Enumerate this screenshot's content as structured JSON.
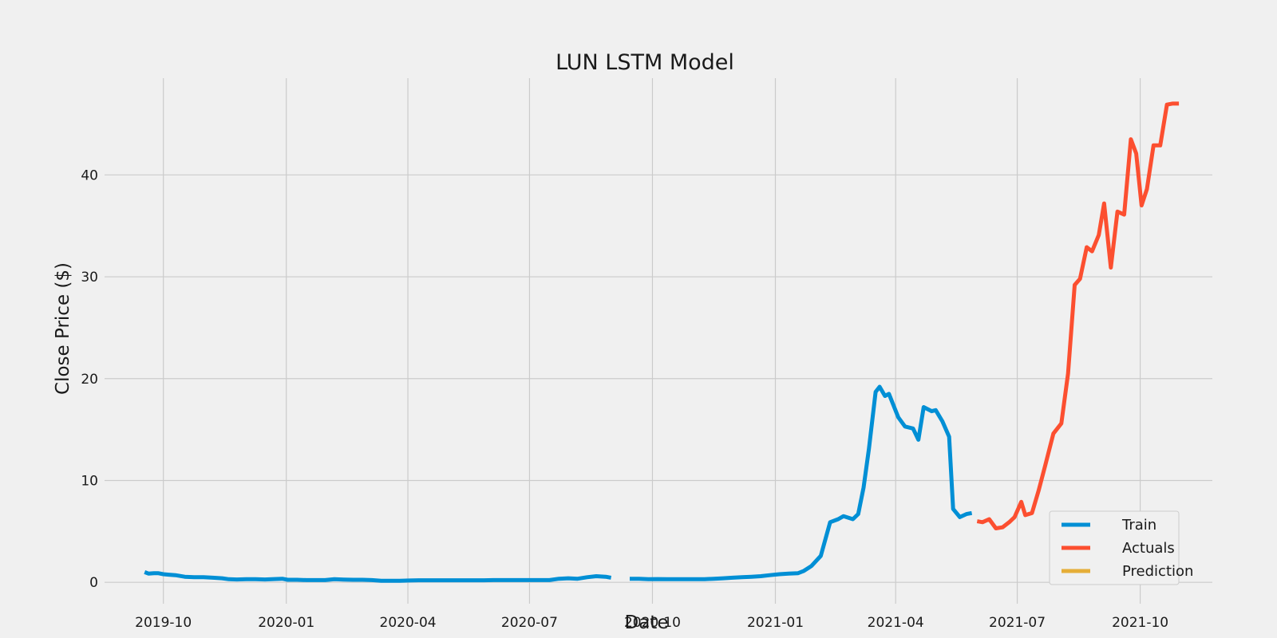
{
  "chart_data": {
    "type": "line",
    "title": "LUN LSTM Model",
    "xlabel": "Date",
    "ylabel": "Close Price ($)",
    "xlim": [
      "2019-08-18",
      "2021-11-24"
    ],
    "ylim": [
      -2.1,
      49.5
    ],
    "x_ticks": [
      "2019-10",
      "2020-01",
      "2020-04",
      "2020-07",
      "2020-10",
      "2021-01",
      "2021-04",
      "2021-07",
      "2021-10"
    ],
    "x_tick_dates": [
      "2019-10-01",
      "2020-01-01",
      "2020-04-01",
      "2020-07-01",
      "2020-10-01",
      "2021-01-01",
      "2021-04-01",
      "2021-07-01",
      "2021-10-01"
    ],
    "y_ticks": [
      "0",
      "10",
      "20",
      "30",
      "40"
    ],
    "y_tick_values": [
      0,
      10,
      20,
      30,
      40
    ],
    "grid": true,
    "legend_position": "bottom-right",
    "colors": {
      "Train": "#008fd5",
      "Actuals": "#fc4f30",
      "Prediction": "#e5ae38"
    },
    "series": [
      {
        "name": "Train",
        "segments": [
          {
            "x": [
              "2019-09-17",
              "2019-09-20",
              "2019-09-24",
              "2019-09-27",
              "2019-10-01",
              "2019-10-05",
              "2019-10-10",
              "2019-10-17",
              "2019-10-24",
              "2019-10-31",
              "2019-11-07",
              "2019-11-14",
              "2019-11-19",
              "2019-11-25",
              "2019-12-02",
              "2019-12-09",
              "2019-12-16",
              "2019-12-23",
              "2019-12-29",
              "2020-01-02",
              "2020-01-09",
              "2020-01-16",
              "2020-01-23",
              "2020-01-30",
              "2020-02-06",
              "2020-02-13",
              "2020-02-20",
              "2020-02-27",
              "2020-03-05",
              "2020-03-12",
              "2020-03-19",
              "2020-03-26",
              "2020-04-02",
              "2020-04-09",
              "2020-04-16",
              "2020-04-23",
              "2020-04-30",
              "2020-05-07",
              "2020-05-14",
              "2020-05-21",
              "2020-05-28",
              "2020-06-04",
              "2020-06-11",
              "2020-06-18",
              "2020-06-25",
              "2020-07-02",
              "2020-07-09",
              "2020-07-16",
              "2020-07-23",
              "2020-07-30",
              "2020-08-06",
              "2020-08-13",
              "2020-08-20",
              "2020-08-27",
              "2020-08-31"
            ],
            "y": [
              1.0,
              0.85,
              0.9,
              0.9,
              0.8,
              0.75,
              0.7,
              0.55,
              0.5,
              0.5,
              0.45,
              0.4,
              0.3,
              0.28,
              0.3,
              0.3,
              0.28,
              0.32,
              0.35,
              0.25,
              0.25,
              0.22,
              0.22,
              0.22,
              0.3,
              0.27,
              0.25,
              0.25,
              0.22,
              0.15,
              0.15,
              0.15,
              0.18,
              0.2,
              0.2,
              0.2,
              0.2,
              0.2,
              0.2,
              0.2,
              0.2,
              0.22,
              0.22,
              0.22,
              0.22,
              0.22,
              0.22,
              0.22,
              0.35,
              0.4,
              0.35,
              0.5,
              0.6,
              0.55,
              0.45
            ]
          },
          {
            "x": [
              "2020-09-14",
              "2020-09-21",
              "2020-09-28",
              "2020-10-05",
              "2020-10-12",
              "2020-10-19",
              "2020-10-26",
              "2020-11-02",
              "2020-11-09",
              "2020-11-16",
              "2020-11-23",
              "2020-11-30",
              "2020-12-07",
              "2020-12-14",
              "2020-12-21",
              "2020-12-28",
              "2021-01-04",
              "2021-01-11",
              "2021-01-18",
              "2021-01-22",
              "2021-01-28",
              "2021-02-04",
              "2021-02-11",
              "2021-02-17",
              "2021-02-21",
              "2021-02-28",
              "2021-03-04",
              "2021-03-08",
              "2021-03-12",
              "2021-03-17",
              "2021-03-20",
              "2021-03-24",
              "2021-03-27",
              "2021-04-03",
              "2021-04-08",
              "2021-04-14",
              "2021-04-18",
              "2021-04-22",
              "2021-04-28",
              "2021-05-01",
              "2021-05-06",
              "2021-05-11",
              "2021-05-14",
              "2021-05-19",
              "2021-05-24",
              "2021-05-28"
            ],
            "y": [
              0.35,
              0.35,
              0.3,
              0.32,
              0.3,
              0.3,
              0.3,
              0.3,
              0.3,
              0.35,
              0.4,
              0.45,
              0.5,
              0.55,
              0.6,
              0.7,
              0.8,
              0.85,
              0.9,
              1.1,
              1.6,
              2.6,
              5.9,
              6.2,
              6.5,
              6.2,
              6.7,
              9.3,
              13.1,
              18.7,
              19.2,
              18.3,
              18.5,
              16.2,
              15.3,
              15.1,
              14.0,
              17.2,
              16.8,
              16.9,
              15.8,
              14.3,
              7.2,
              6.4,
              6.7,
              6.8
            ]
          }
        ]
      },
      {
        "name": "Actuals",
        "segments": [
          {
            "x": [
              "2021-06-01",
              "2021-06-05",
              "2021-06-10",
              "2021-06-15",
              "2021-06-20",
              "2021-06-25",
              "2021-06-29",
              "2021-07-04",
              "2021-07-07",
              "2021-07-12",
              "2021-07-17",
              "2021-07-22",
              "2021-07-28",
              "2021-08-03",
              "2021-08-08",
              "2021-08-13",
              "2021-08-17",
              "2021-08-22",
              "2021-08-26",
              "2021-08-31",
              "2021-09-04",
              "2021-09-09",
              "2021-09-14",
              "2021-09-19",
              "2021-09-24",
              "2021-09-28",
              "2021-10-02",
              "2021-10-06",
              "2021-10-11",
              "2021-10-16",
              "2021-10-21",
              "2021-10-25",
              "2021-10-30"
            ],
            "y": [
              6.0,
              5.9,
              6.2,
              5.3,
              5.4,
              5.9,
              6.4,
              7.9,
              6.6,
              6.8,
              9.0,
              11.5,
              14.6,
              15.6,
              20.5,
              29.2,
              29.8,
              32.9,
              32.5,
              34.1,
              37.2,
              30.9,
              36.4,
              36.1,
              43.5,
              42.1,
              37.0,
              38.6,
              42.9,
              42.9,
              46.9,
              47.0,
              47.0
            ]
          }
        ]
      },
      {
        "name": "Prediction",
        "segments": []
      }
    ]
  }
}
